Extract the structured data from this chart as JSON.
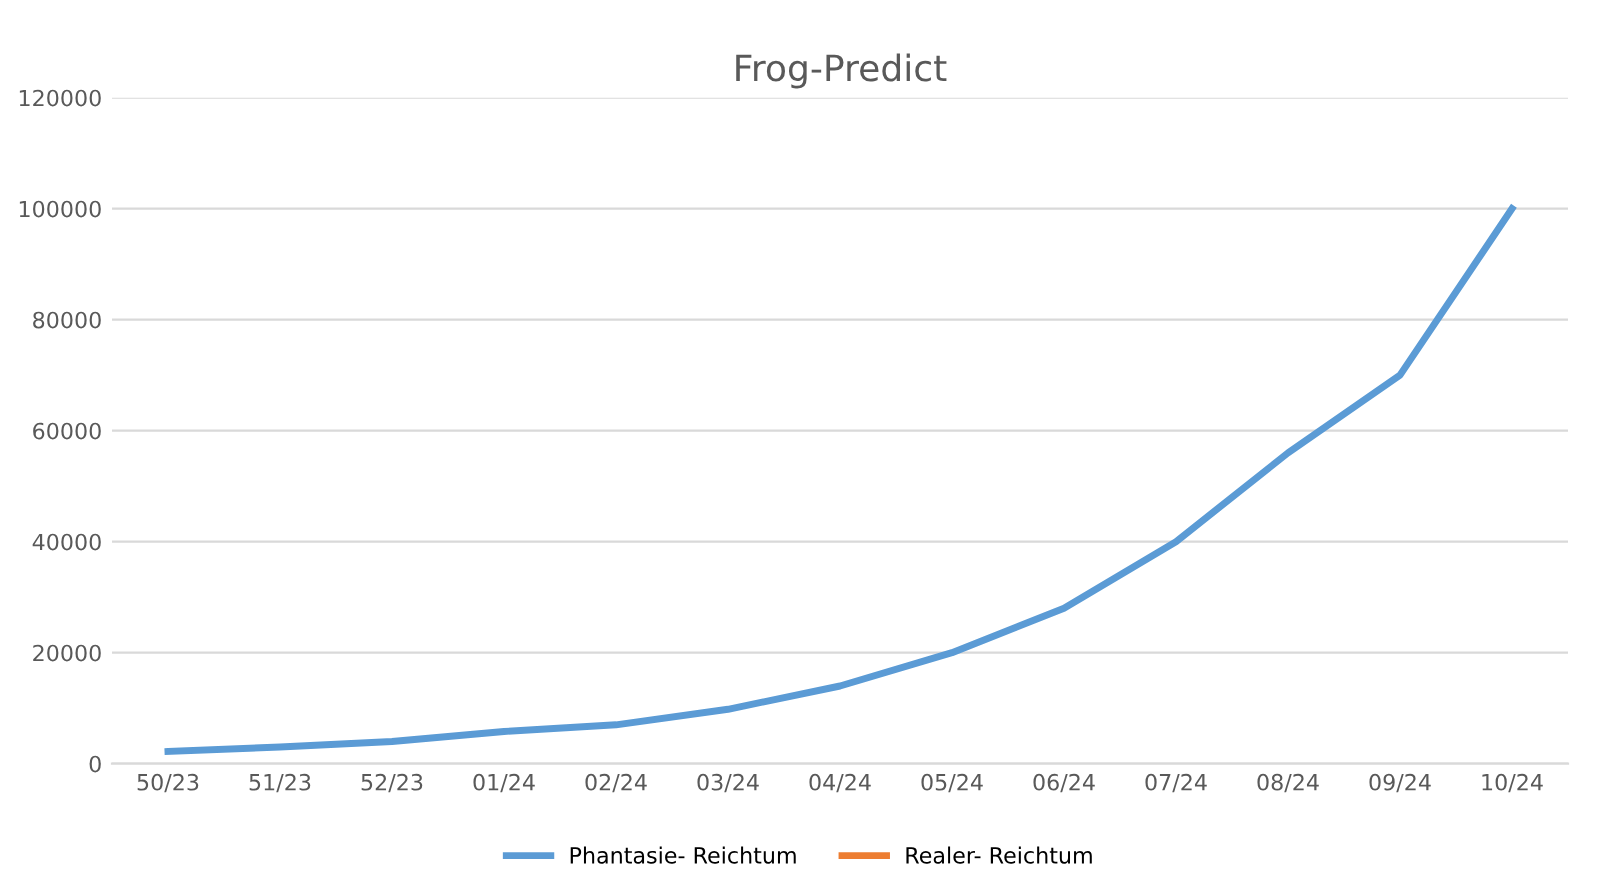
{
  "chart_data": {
    "type": "line",
    "title": "Frog-Predict",
    "categories": [
      "50/23",
      "51/23",
      "52/23",
      "01/24",
      "02/24",
      "03/24",
      "04/24",
      "05/24",
      "06/24",
      "07/24",
      "08/24",
      "09/24",
      "10/24"
    ],
    "series": [
      {
        "name": "Phantasie- Reichtum",
        "color": "#5b9bd5",
        "values": [
          2200,
          3000,
          4000,
          5800,
          7000,
          9800,
          14000,
          20000,
          28000,
          40000,
          56000,
          70000,
          100000
        ]
      },
      {
        "name": "Realer- Reichtum",
        "color": "#ed7d31",
        "values": [
          null,
          null,
          null,
          null,
          null,
          null,
          null,
          null,
          null,
          null,
          null,
          null,
          null
        ]
      }
    ],
    "ylim": [
      0,
      120000
    ],
    "yticks": [
      0,
      20000,
      40000,
      60000,
      80000,
      100000,
      120000
    ],
    "grid": "y",
    "legend": "bottom",
    "marker": "none",
    "line_style": "solid"
  }
}
